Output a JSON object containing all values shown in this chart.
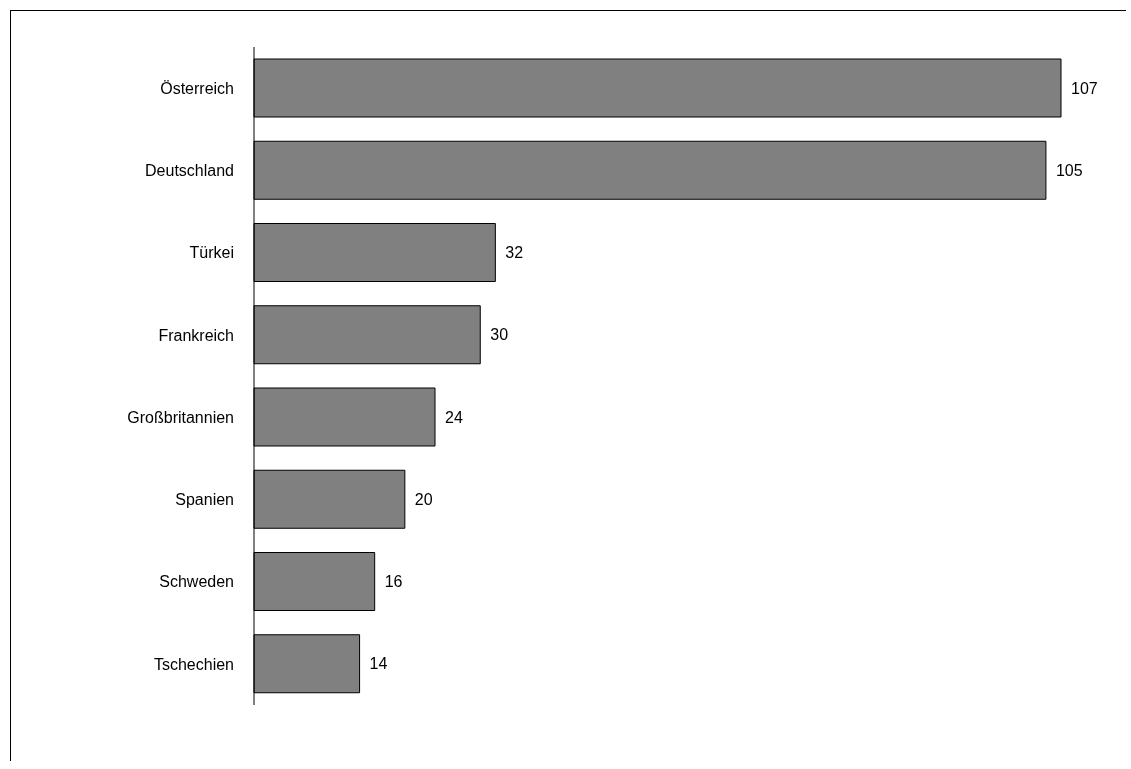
{
  "chart_data": {
    "type": "bar",
    "orientation": "horizontal",
    "categories": [
      "Österreich",
      "Deutschland",
      "Türkei",
      "Frankreich",
      "Großbritannien",
      "Spanien",
      "Schweden",
      "Tschechien"
    ],
    "values": [
      107,
      105,
      32,
      30,
      24,
      20,
      16,
      14
    ],
    "color": "#808080",
    "data_labels": true,
    "tick_labels": "y"
  }
}
